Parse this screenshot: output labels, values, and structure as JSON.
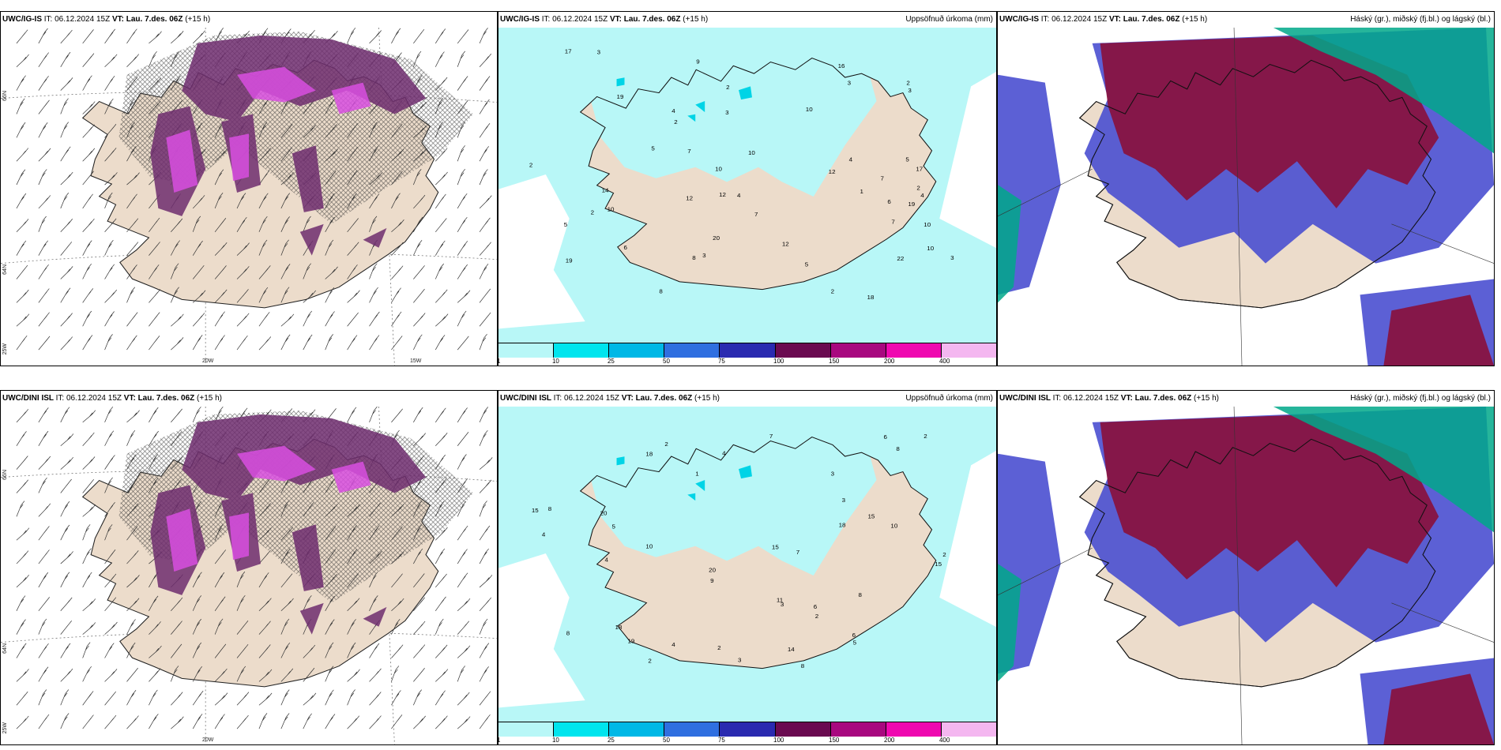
{
  "panels": [
    {
      "id": "p1",
      "model": "UWC/IG-IS",
      "it_label": "IT:",
      "it": "06.12.2024 15Z",
      "vt_label": "VT:",
      "vt": "Lau. 7.des. 06Z",
      "lead": "(+15 h)",
      "right": "",
      "type": "wind"
    },
    {
      "id": "p2",
      "model": "UWC/IG-IS",
      "it_label": "IT:",
      "it": "06.12.2024 15Z",
      "vt_label": "VT:",
      "vt": "Lau. 7.des. 06Z",
      "lead": "(+15 h)",
      "right": "Uppsöfnuð úrkoma (mm)",
      "type": "precip"
    },
    {
      "id": "p3",
      "model": "UWC/IG-IS",
      "it_label": "IT:",
      "it": "06.12.2024 15Z",
      "vt_label": "VT:",
      "vt": "Lau. 7.des. 06Z",
      "lead": "(+15 h)",
      "right": "Háský (gr.), miðský (fj.bl.) og lágský (bl.)",
      "type": "cloud"
    },
    {
      "id": "p4",
      "model": "UWC/DINI ISL",
      "it_label": "IT:",
      "it": "06.12.2024 15Z",
      "vt_label": "VT:",
      "vt": "Lau. 7.des. 06Z",
      "lead": "(+15 h)",
      "right": "",
      "type": "wind"
    },
    {
      "id": "p5",
      "model": "UWC/DINI ISL",
      "it_label": "IT:",
      "it": "06.12.2024 15Z",
      "vt_label": "VT:",
      "vt": "Lau. 7.des. 06Z",
      "lead": "(+15 h)",
      "right": "Uppsöfnuð úrkoma (mm)",
      "type": "precip"
    },
    {
      "id": "p6",
      "model": "UWC/DINI ISL",
      "it_label": "IT:",
      "it": "06.12.2024 15Z",
      "vt_label": "VT:",
      "vt": "Lau. 7.des. 06Z",
      "lead": "(+15 h)",
      "right": "Háský (gr.), miðský (fj.bl.) og lágský (bl.)",
      "type": "cloud"
    }
  ],
  "axes": {
    "lat66": "66N",
    "lat64": "64N",
    "lon25": "25W",
    "lon20": "20W",
    "lon15": "15W"
  },
  "colorbar": {
    "labels": [
      "1",
      "10",
      "25",
      "50",
      "75",
      "100",
      "150",
      "200",
      "400"
    ],
    "colors": [
      "#b8f7f7",
      "#00e5ee",
      "#00b8e6",
      "#2f6fe0",
      "#2a2ab0",
      "#6a0a50",
      "#a8087f",
      "#ef08b0",
      "#f4b7f0"
    ]
  },
  "precip_values_top": [
    "10",
    "17",
    "12",
    "12",
    "7",
    "22",
    "19",
    "14",
    "17",
    "16",
    "10",
    "12",
    "20",
    "19",
    "6",
    "12",
    "19",
    "18",
    "7",
    "8",
    "10",
    "10",
    "3",
    "7",
    "5",
    "4",
    "8",
    "3",
    "2",
    "2",
    "5",
    "5",
    "4",
    "3",
    "2",
    "4",
    "6",
    "9",
    "3",
    "2",
    "1",
    "2",
    "5",
    "3",
    "4",
    "2",
    "7",
    "10",
    "3",
    "2",
    "10"
  ],
  "precip_values_bottom": [
    "8",
    "18",
    "18",
    "20",
    "15",
    "14",
    "15",
    "10",
    "9",
    "19",
    "8",
    "15",
    "20",
    "11",
    "18",
    "6",
    "4",
    "8",
    "8",
    "10",
    "6",
    "3",
    "2",
    "5",
    "7",
    "3",
    "4",
    "5",
    "3",
    "1",
    "2",
    "2",
    "3",
    "4",
    "2",
    "2",
    "7",
    "8",
    "2",
    "6",
    "4",
    "15"
  ],
  "colors": {
    "land": "#ecdccb",
    "precip_light": "#b8f7f7",
    "precip_mid": "#00d4e6",
    "cloud_high": "#00a88a",
    "cloud_mid": "#8a0f3a",
    "cloud_low": "#4a4fd0",
    "snow": "#a04aa8"
  }
}
